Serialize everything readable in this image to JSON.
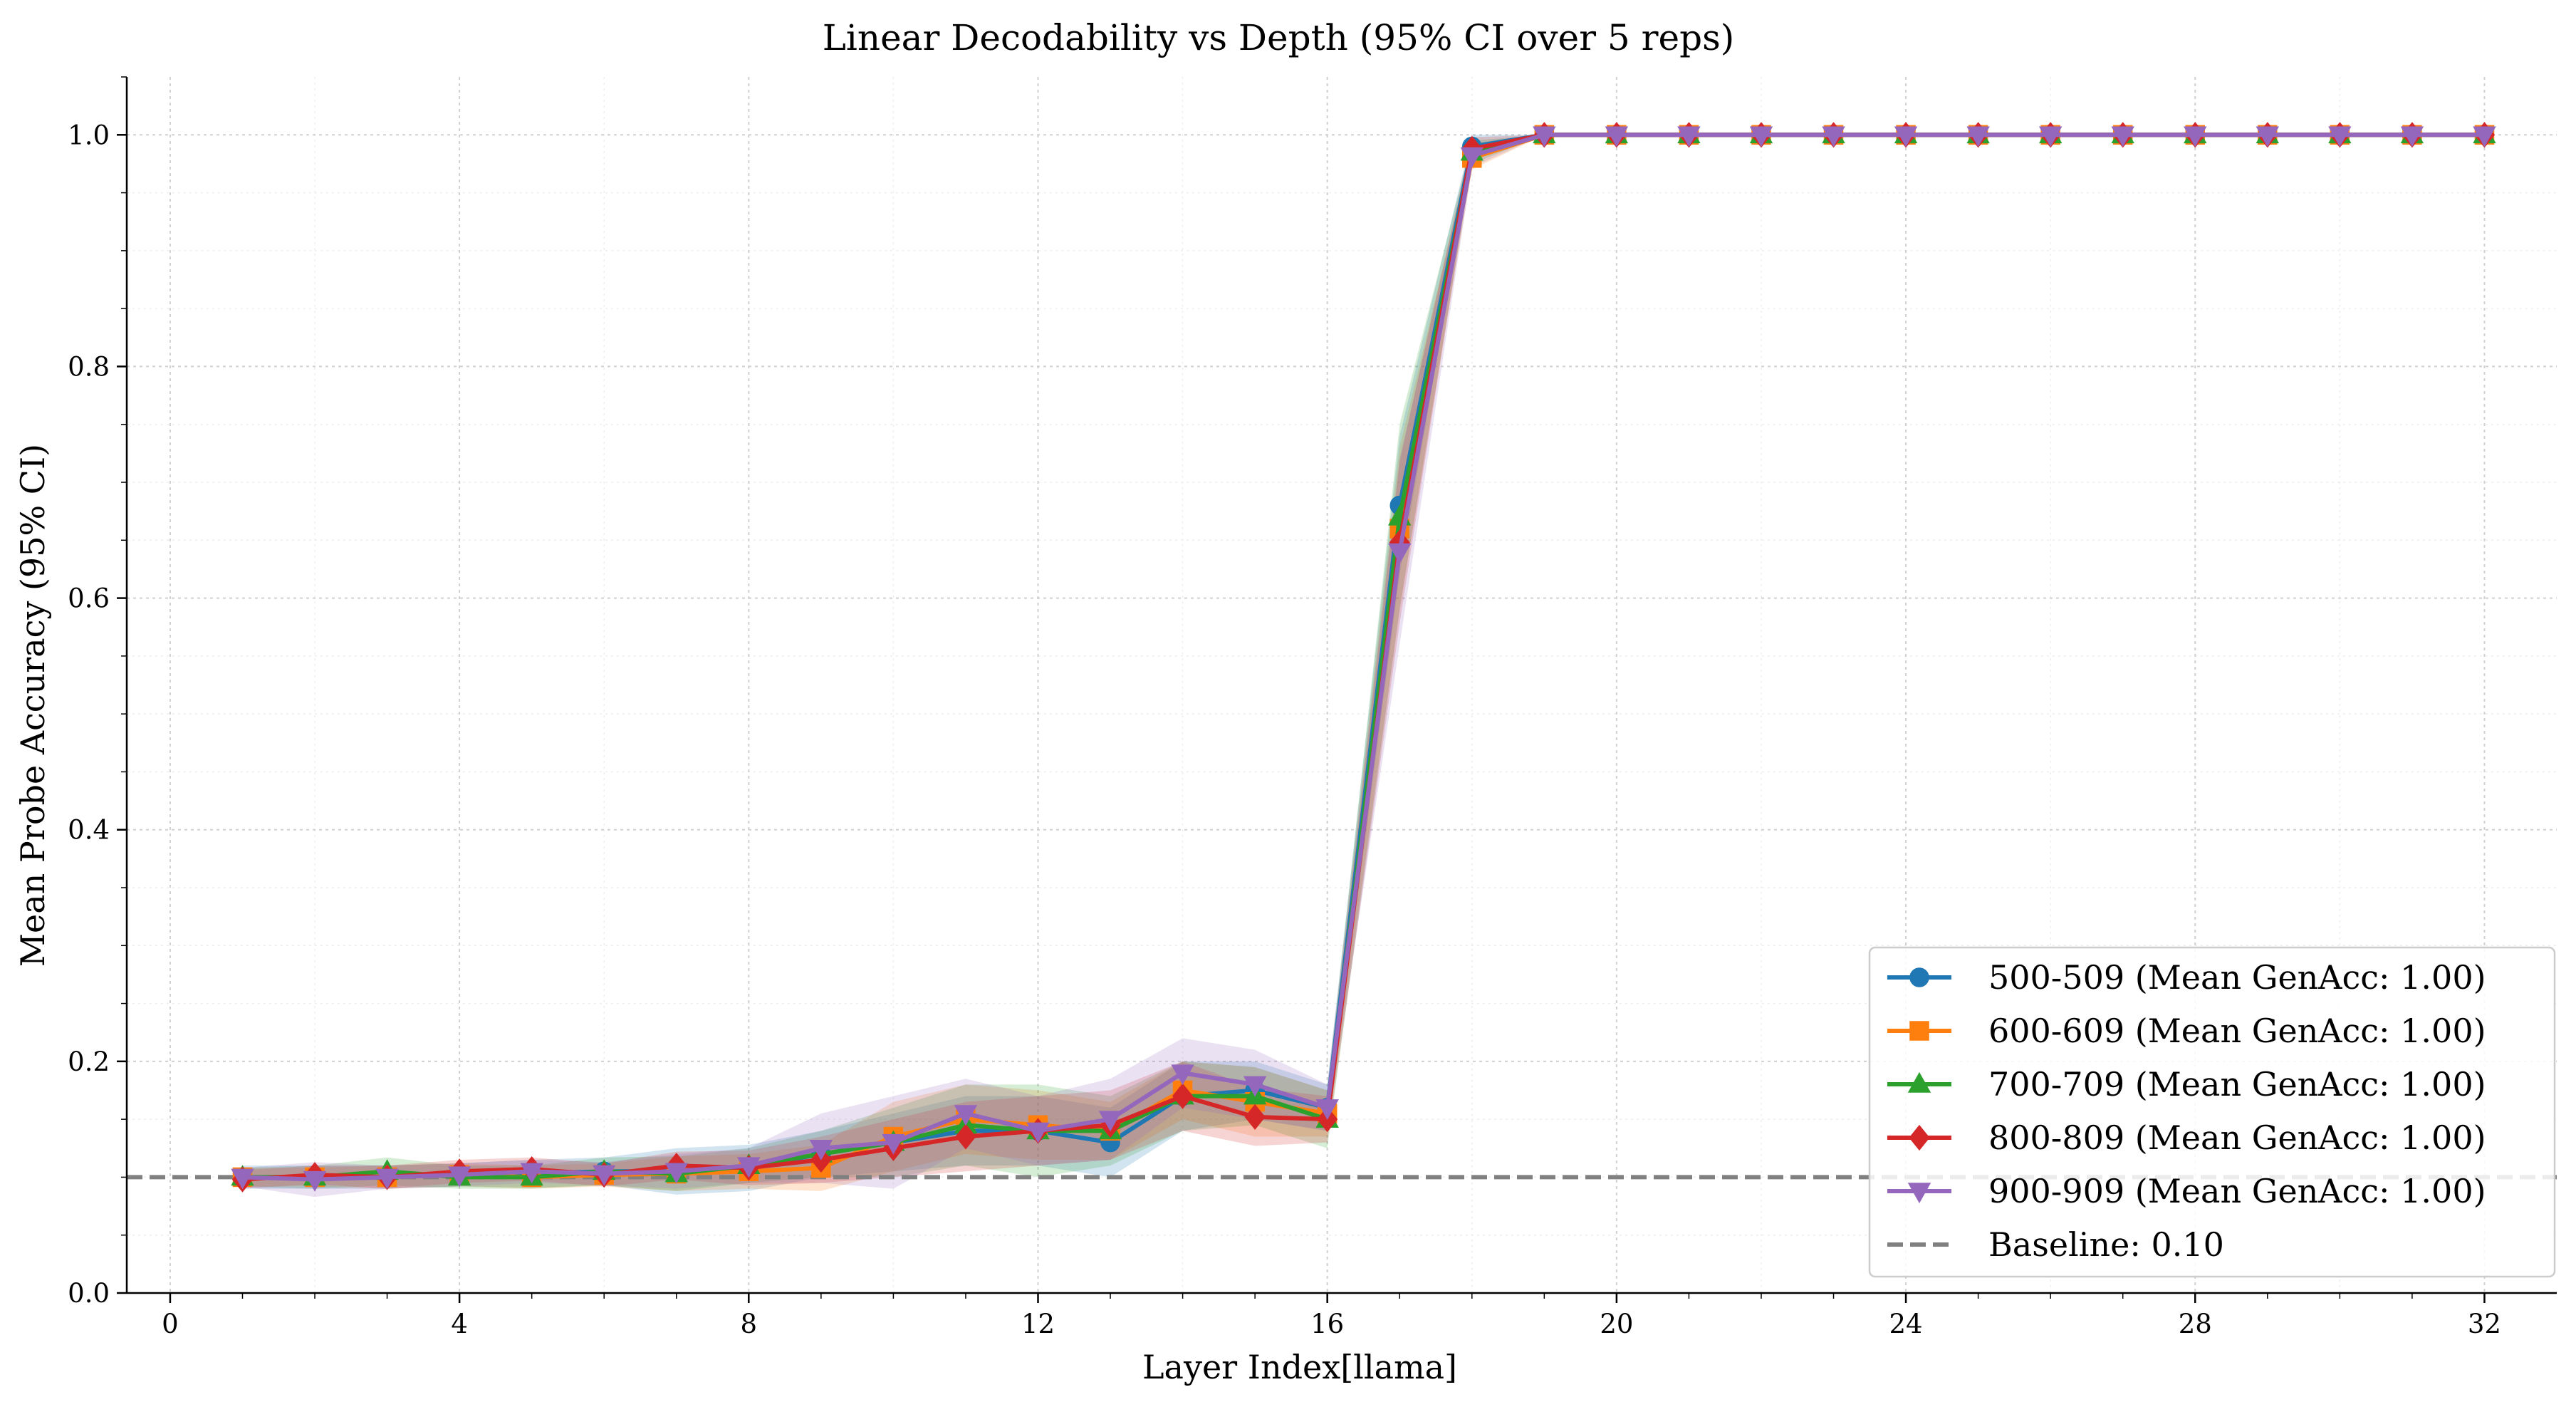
{
  "chart_data": {
    "type": "line",
    "title": "Linear Decodability vs Depth (95% CI over 5 reps)",
    "xlabel": "Layer Index[llama]",
    "ylabel": "Mean Probe Accuracy (95% CI)",
    "xlim": [
      -0.6,
      33.0
    ],
    "ylim": [
      0.0,
      1.05
    ],
    "xticks": [
      0,
      4,
      8,
      12,
      16,
      20,
      24,
      28,
      32
    ],
    "xtick_labels": [
      "0",
      "4",
      "8",
      "12",
      "16",
      "20",
      "24",
      "28",
      "32"
    ],
    "yticks": [
      0.0,
      0.2,
      0.4,
      0.6,
      0.8,
      1.0
    ],
    "ytick_labels": [
      "0.0",
      "0.2",
      "0.4",
      "0.6",
      "0.8",
      "1.0"
    ],
    "grid": true,
    "legend_position": "lower-right",
    "x": [
      1,
      2,
      3,
      4,
      5,
      6,
      7,
      8,
      9,
      10,
      11,
      12,
      13,
      14,
      15,
      16,
      17,
      18,
      19,
      20,
      21,
      22,
      23,
      24,
      25,
      26,
      27,
      28,
      29,
      30,
      31,
      32
    ],
    "series": [
      {
        "name": "500-509 (Mean GenAcc: 1.00)",
        "color": "#1f77b4",
        "marker": "circle",
        "values": [
          0.1,
          0.1,
          0.1,
          0.102,
          0.103,
          0.105,
          0.105,
          0.108,
          0.12,
          0.13,
          0.14,
          0.14,
          0.13,
          0.17,
          0.175,
          0.16,
          0.68,
          0.99,
          1.0,
          1.0,
          1.0,
          1.0,
          1.0,
          1.0,
          1.0,
          1.0,
          1.0,
          1.0,
          1.0,
          1.0,
          1.0,
          1.0
        ],
        "ci": [
          0.01,
          0.01,
          0.01,
          0.01,
          0.012,
          0.012,
          0.02,
          0.02,
          0.02,
          0.025,
          0.03,
          0.03,
          0.03,
          0.03,
          0.025,
          0.02,
          0.06,
          0.01,
          0.0,
          0.0,
          0.0,
          0.0,
          0.0,
          0.0,
          0.0,
          0.0,
          0.0,
          0.0,
          0.0,
          0.0,
          0.0,
          0.0
        ]
      },
      {
        "name": "600-609 (Mean GenAcc: 1.00)",
        "color": "#ff7f0e",
        "marker": "square",
        "values": [
          0.1,
          0.1,
          0.1,
          0.102,
          0.1,
          0.102,
          0.103,
          0.105,
          0.108,
          0.135,
          0.15,
          0.145,
          0.14,
          0.175,
          0.165,
          0.155,
          0.66,
          0.98,
          1.0,
          1.0,
          1.0,
          1.0,
          1.0,
          1.0,
          1.0,
          1.0,
          1.0,
          1.0,
          1.0,
          1.0,
          1.0,
          1.0
        ],
        "ci": [
          0.008,
          0.008,
          0.01,
          0.01,
          0.01,
          0.01,
          0.015,
          0.015,
          0.02,
          0.03,
          0.03,
          0.03,
          0.025,
          0.025,
          0.03,
          0.02,
          0.07,
          0.01,
          0.0,
          0.0,
          0.0,
          0.0,
          0.0,
          0.0,
          0.0,
          0.0,
          0.0,
          0.0,
          0.0,
          0.0,
          0.0,
          0.0
        ]
      },
      {
        "name": "700-709 (Mean GenAcc: 1.00)",
        "color": "#2ca02c",
        "marker": "triangle-up",
        "values": [
          0.1,
          0.1,
          0.105,
          0.1,
          0.1,
          0.105,
          0.103,
          0.11,
          0.12,
          0.13,
          0.145,
          0.14,
          0.14,
          0.17,
          0.17,
          0.15,
          0.67,
          0.985,
          1.0,
          1.0,
          1.0,
          1.0,
          1.0,
          1.0,
          1.0,
          1.0,
          1.0,
          1.0,
          1.0,
          1.0,
          1.0,
          1.0
        ],
        "ci": [
          0.008,
          0.01,
          0.012,
          0.01,
          0.01,
          0.012,
          0.015,
          0.015,
          0.02,
          0.03,
          0.035,
          0.04,
          0.03,
          0.03,
          0.025,
          0.025,
          0.08,
          0.01,
          0.0,
          0.0,
          0.0,
          0.0,
          0.0,
          0.0,
          0.0,
          0.0,
          0.0,
          0.0,
          0.0,
          0.0,
          0.0,
          0.0
        ]
      },
      {
        "name": "800-809 (Mean GenAcc: 1.00)",
        "color": "#d62728",
        "marker": "diamond",
        "values": [
          0.098,
          0.102,
          0.1,
          0.105,
          0.107,
          0.102,
          0.11,
          0.108,
          0.115,
          0.125,
          0.135,
          0.14,
          0.145,
          0.17,
          0.152,
          0.15,
          0.648,
          0.988,
          1.0,
          1.0,
          1.0,
          1.0,
          1.0,
          1.0,
          1.0,
          1.0,
          1.0,
          1.0,
          1.0,
          1.0,
          1.0,
          1.0
        ],
        "ci": [
          0.008,
          0.008,
          0.01,
          0.01,
          0.01,
          0.01,
          0.012,
          0.015,
          0.02,
          0.025,
          0.03,
          0.03,
          0.03,
          0.03,
          0.025,
          0.02,
          0.07,
          0.01,
          0.0,
          0.0,
          0.0,
          0.0,
          0.0,
          0.0,
          0.0,
          0.0,
          0.0,
          0.0,
          0.0,
          0.0,
          0.0,
          0.0
        ]
      },
      {
        "name": "900-909 (Mean GenAcc: 1.00)",
        "color": "#9467bd",
        "marker": "triangle-down",
        "values": [
          0.1,
          0.098,
          0.1,
          0.102,
          0.105,
          0.103,
          0.105,
          0.11,
          0.125,
          0.13,
          0.155,
          0.14,
          0.15,
          0.19,
          0.18,
          0.16,
          0.64,
          0.982,
          1.0,
          1.0,
          1.0,
          1.0,
          1.0,
          1.0,
          1.0,
          1.0,
          1.0,
          1.0,
          1.0,
          1.0,
          1.0,
          1.0
        ],
        "ci": [
          0.008,
          0.015,
          0.01,
          0.01,
          0.01,
          0.01,
          0.015,
          0.015,
          0.03,
          0.04,
          0.03,
          0.03,
          0.035,
          0.03,
          0.03,
          0.02,
          0.08,
          0.01,
          0.0,
          0.0,
          0.0,
          0.0,
          0.0,
          0.0,
          0.0,
          0.0,
          0.0,
          0.0,
          0.0,
          0.0,
          0.0,
          0.0
        ]
      }
    ],
    "baseline": {
      "name": "Baseline: 0.10",
      "value": 0.1,
      "color": "#808080",
      "style": "dashed"
    }
  }
}
